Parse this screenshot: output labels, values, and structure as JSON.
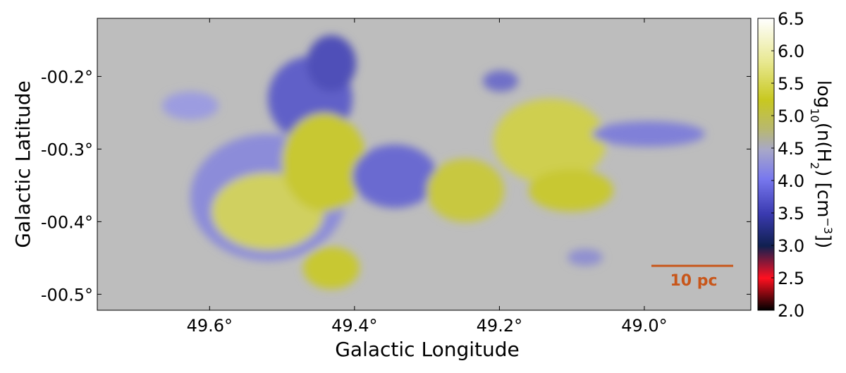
{
  "chart_data": {
    "type": "image",
    "xlabel": "Galactic Longitude",
    "ylabel": "Galactic Latitude",
    "xlim": [
      49.755,
      48.853
    ],
    "ylim": [
      -0.522,
      -0.12
    ],
    "xticks": [
      {
        "value": 49.6,
        "label": "49.6°"
      },
      {
        "value": 49.4,
        "label": "49.4°"
      },
      {
        "value": 49.2,
        "label": "49.2°"
      },
      {
        "value": 49.0,
        "label": "49.0°"
      }
    ],
    "yticks": [
      {
        "value": -0.2,
        "label": "-00.2°"
      },
      {
        "value": -0.3,
        "label": "-00.3°"
      },
      {
        "value": -0.4,
        "label": "-00.4°"
      },
      {
        "value": -0.5,
        "label": "-00.5°"
      }
    ],
    "colorbar": {
      "lim": [
        2.0,
        6.5
      ],
      "ticks": [
        {
          "value": 2.0,
          "label": "2.0"
        },
        {
          "value": 2.5,
          "label": "2.5"
        },
        {
          "value": 3.0,
          "label": "3.0"
        },
        {
          "value": 3.5,
          "label": "3.5"
        },
        {
          "value": 4.0,
          "label": "4.0"
        },
        {
          "value": 4.5,
          "label": "4.5"
        },
        {
          "value": 5.0,
          "label": "5.0"
        },
        {
          "value": 5.5,
          "label": "5.5"
        },
        {
          "value": 6.0,
          "label": "6.0"
        },
        {
          "value": 6.5,
          "label": "6.5"
        }
      ],
      "label": [
        "log",
        "10",
        "(n(H",
        "2",
        ") [cm",
        "−3",
        "])"
      ]
    },
    "annotation": "10 pc"
  }
}
